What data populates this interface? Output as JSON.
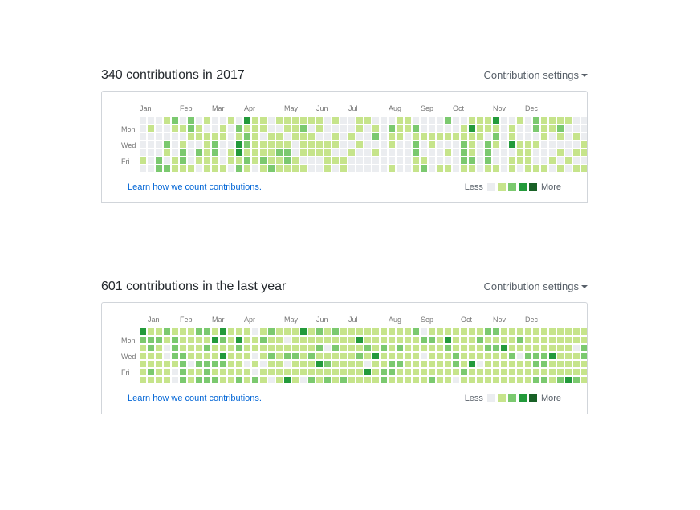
{
  "sections": [
    {
      "title": "340 contributions in 2017",
      "settings_label": "Contribution settings",
      "months": [
        {
          "label": "Jan",
          "week": 0
        },
        {
          "label": "Feb",
          "week": 5
        },
        {
          "label": "Mar",
          "week": 9
        },
        {
          "label": "Apr",
          "week": 13
        },
        {
          "label": "May",
          "week": 18
        },
        {
          "label": "Jun",
          "week": 22
        },
        {
          "label": "Jul",
          "week": 26
        },
        {
          "label": "Aug",
          "week": 31
        },
        {
          "label": "Sep",
          "week": 35
        },
        {
          "label": "Oct",
          "week": 39
        },
        {
          "label": "Nov",
          "week": 44
        },
        {
          "label": "Dec",
          "week": 48
        }
      ],
      "weekdays": [
        "Mon",
        "Wed",
        "Fri"
      ],
      "grid": [
        "0000010010000000000221002102210001101012212210001011021010111110012211011000110001100213312312212111111101101121001111210112111101221111001112111011011100110110000011111011010000001100101001101000100",
        "0000012010000000000211001111000011000000212211001001200110000010001201010100100000112221131112111100001102221312100100000000113011100111000011112201001111000111000101210101100001000101010001101000001",
        "000001004"
      ],
      "legend": {
        "less": "Less",
        "more": "More"
      },
      "learn_link": "Learn how we count contributions."
    },
    {
      "title": "601 contributions in the last year",
      "settings_label": "Contribution settings",
      "months": [
        {
          "label": "Jan",
          "week": 1
        },
        {
          "label": "Feb",
          "week": 5
        },
        {
          "label": "Mar",
          "week": 9
        },
        {
          "label": "Apr",
          "week": 13
        },
        {
          "label": "May",
          "week": 18
        },
        {
          "label": "Jun",
          "week": 22
        },
        {
          "label": "Jul",
          "week": 26
        },
        {
          "label": "Aug",
          "week": 31
        },
        {
          "label": "Sep",
          "week": 35
        },
        {
          "label": "Oct",
          "week": 40
        },
        {
          "label": "Nov",
          "week": 44
        },
        {
          "label": "Dec",
          "week": 48
        }
      ],
      "weekdays": [
        "Mon",
        "Wed",
        "Fri"
      ],
      "grid": [
        "321111112211211211111210011112221001112222111101121112122121222131121232132111111111132111211110110110102121101121121101111111101201311121113111110111211221213111101212212111111111121111111131211111210",
        "311113111112112211112211121211111111121111110210111121111211111111321111111221011111211111311121101121211112121111113111111121111210111111211111122121112212111311111111121111113110111211221112111111",
        "3111111"
      ],
      "legend": {
        "less": "Less",
        "more": "More"
      },
      "learn_link": "Learn how we count contributions."
    }
  ],
  "colors": {
    "empty": "#ebedf0",
    "level1": "#c6e48b",
    "level2": "#7bc96f",
    "level3": "#239a3b",
    "level4": "#196127",
    "link": "#0366d6"
  }
}
